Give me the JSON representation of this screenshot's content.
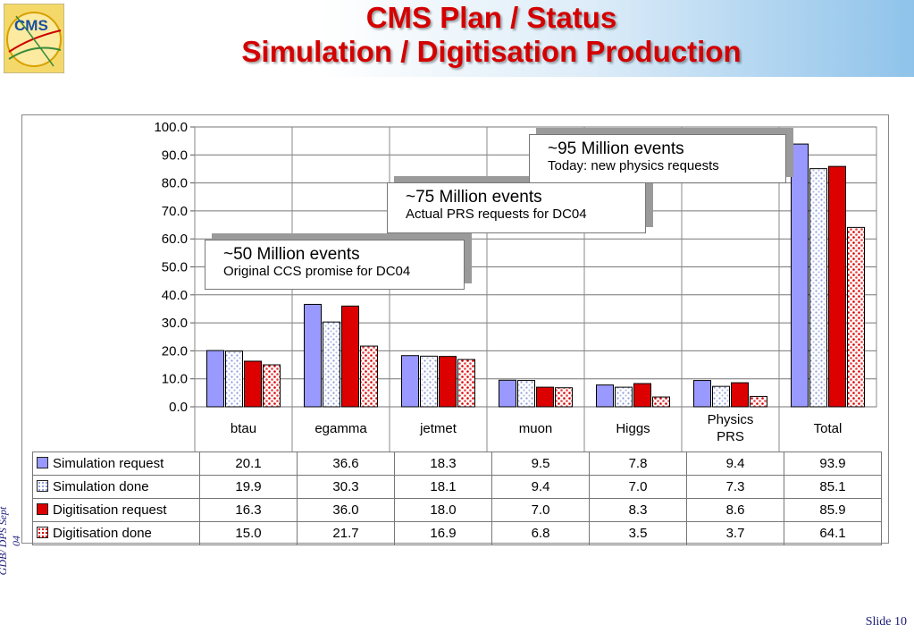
{
  "title": {
    "line1": "CMS Plan / Status",
    "line2": "Simulation / Digitisation Production"
  },
  "logo_text": "CMS",
  "side_label": "GDB/ DPS Sept 04",
  "slide_label": "Slide 10",
  "callouts": [
    {
      "main": "~50 Million events",
      "sub": "Original CCS promise for DC04"
    },
    {
      "main": "~75 Million events",
      "sub": "Actual PRS requests for DC04"
    },
    {
      "main": "~95 Million events",
      "sub": "Today: new physics requests"
    }
  ],
  "chart_data": {
    "type": "bar",
    "categories": [
      "btau",
      "egamma",
      "jetmet",
      "muon",
      "Higgs",
      "Physics PRS",
      "Total"
    ],
    "series": [
      {
        "name": "Simulation request",
        "values": [
          20.1,
          36.6,
          18.3,
          9.5,
          7.8,
          9.4,
          93.9
        ],
        "color": "#9999ff"
      },
      {
        "name": "Simulation done",
        "values": [
          19.9,
          30.3,
          18.1,
          9.4,
          7.0,
          7.3,
          85.1
        ],
        "color": "#c9d4f2"
      },
      {
        "name": "Digitisation request",
        "values": [
          16.3,
          36.0,
          18.0,
          7.0,
          8.3,
          8.6,
          85.9
        ],
        "color": "#dd0000"
      },
      {
        "name": "Digitisation done",
        "values": [
          15.0,
          21.7,
          16.9,
          6.8,
          3.5,
          3.7,
          64.1
        ],
        "color": "#f3c8c8"
      }
    ],
    "table_values": [
      [
        "20.1",
        "36.6",
        "18.3",
        "9.5",
        "7.8",
        "9.4",
        "93.9"
      ],
      [
        "19.9",
        "30.3",
        "18.1",
        "9.4",
        "7.0",
        "7.3",
        "85.1"
      ],
      [
        "16.3",
        "36.0",
        "18.0",
        "7.0",
        "8.3",
        "8.6",
        "85.9"
      ],
      [
        "15.0",
        "21.7",
        "16.9",
        "6.8",
        "3.5",
        "3.7",
        "64.1"
      ]
    ],
    "ylim": [
      0,
      100
    ],
    "yticks": [
      "0.0",
      "10.0",
      "20.0",
      "30.0",
      "40.0",
      "50.0",
      "60.0",
      "70.0",
      "80.0",
      "90.0",
      "100.0"
    ],
    "grid": true,
    "legend": "data-table"
  }
}
